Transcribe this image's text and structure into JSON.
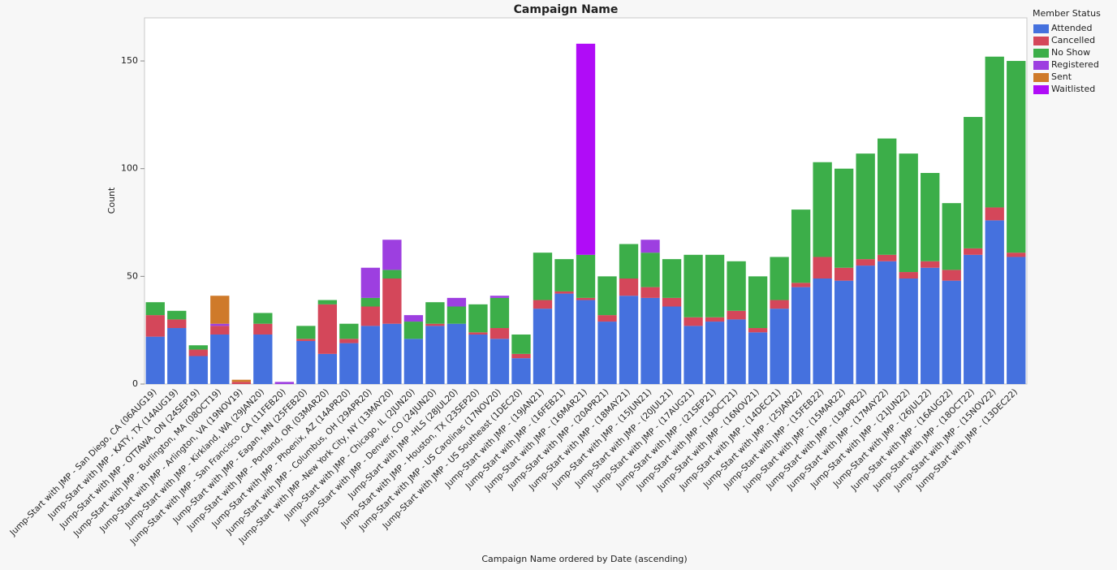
{
  "chart_data": {
    "type": "stacked_bar",
    "title": "Campaign Name",
    "x_label": "Campaign Name ordered by Date (ascending)",
    "y_label": "Count",
    "legend_title": "Member Status",
    "categories": [
      "Jump-Start with JMP - San Diego, CA (06AUG19)",
      "Jump-Start with JMP - KATY, TX (14AUG19)",
      "Jump-Start with JMP - OTTAWA, ON (24SEP19)",
      "Jump-Start with JMP - Burlington, MA (08OCT19)",
      "Jump-Start with JMP - Arlington, VA (19NOV19)",
      "Jump-Start with JMP - Kirkland, WA (29JAN20)",
      "Jump-Start with JMP - San Francisco, CA (11FEB20)",
      "Jump-Start with JMP - Eagan, MN (25FEB20)",
      "Jump-Start with JMP - Portland, OR (03MAR20)",
      "Jump-Start with JMP - Phoenix, AZ (14APR20)",
      "Jump-Start with JMP - Columbus, OH (29APR20)",
      "Jump-Start with JMP -New York City, NY (13MAY20)",
      "Jump-Start with JMP - Chicago, IL (2JUN20)",
      "Jump-Start with JMP - Denver, CO (24JUN20)",
      "Jump-Start with JMP -HLS (28JUL20)",
      "Jump-Start with JMP - Houston, TX (23SEP20)",
      "Jump-Start with JMP - US Carolinas (17NOV20)",
      "Jump-Start with JMP - US Southeast (1DEC20)",
      "Jump-Start with JMP - (19JAN21)",
      "Jump-Start with JMP - (16FEB21)",
      "Jump-Start with JMP - (16MAR21)",
      "Jump-Start with JMP - (20APR21)",
      "Jump-Start with JMP - (18MAY21)",
      "Jump-Start with JMP - (15JUN21)",
      "Jump-Start with JMP - (20JUL21)",
      "Jump-Start with JMP - (17AUG21)",
      "Jump-Start with JMP - (21SEP21)",
      "Jump-Start with JMP - (19OCT21)",
      "Jump-Start with JMP - (16NOV21)",
      "Jump-Start with JMP - (14DEC21)",
      "Jump-Start with JMP - (25JAN22)",
      "Jump-Start with JMP - (15FEB22)",
      "Jump-Start with JMP - (15MAR22)",
      "Jump-Start with JMP - (19APR22)",
      "Jump-Start with JMP - (17MAY22)",
      "Jump-Start with JMP - (21JUN22)",
      "Jump-Start with JMP - (26JUL22)",
      "Jump-Start with JMP - (16AUG22)",
      "Jump-Start with JMP - (18OCT22)",
      "Jump-Start with JMP - (15NOV22)",
      "Jump-Start with JMP - (13DEC22)"
    ],
    "series": [
      {
        "name": "Attended",
        "color": "#4571de",
        "values": [
          22,
          26,
          13,
          23,
          0,
          23,
          0,
          20,
          14,
          19,
          27,
          28,
          21,
          27,
          28,
          23,
          21,
          12,
          35,
          42,
          39,
          29,
          41,
          40,
          36,
          27,
          29,
          30,
          24,
          35,
          45,
          49,
          48,
          55,
          57,
          49,
          54,
          48,
          60,
          76,
          59
        ]
      },
      {
        "name": "Cancelled",
        "color": "#d4475a",
        "values": [
          10,
          4,
          3,
          4,
          1,
          5,
          0,
          1,
          23,
          2,
          9,
          21,
          0,
          1,
          0,
          1,
          5,
          2,
          4,
          1,
          1,
          3,
          8,
          5,
          4,
          4,
          2,
          4,
          2,
          4,
          2,
          10,
          6,
          3,
          3,
          3,
          3,
          5,
          3,
          6,
          2
        ]
      },
      {
        "name": "No Show",
        "color": "#3cae49",
        "values": [
          6,
          4,
          2,
          0,
          0,
          5,
          0,
          6,
          2,
          7,
          4,
          4,
          8,
          10,
          8,
          13,
          14,
          9,
          22,
          15,
          20,
          18,
          16,
          16,
          18,
          29,
          29,
          23,
          24,
          20,
          34,
          44,
          46,
          49,
          54,
          55,
          41,
          31,
          61,
          70,
          89
        ]
      },
      {
        "name": "Registered",
        "color": "#9d3fe0",
        "values": [
          0,
          0,
          0,
          1,
          0,
          0,
          1,
          0,
          0,
          0,
          14,
          14,
          3,
          0,
          4,
          0,
          1,
          0,
          0,
          0,
          0,
          0,
          0,
          6,
          0,
          0,
          0,
          0,
          0,
          0,
          0,
          0,
          0,
          0,
          0,
          0,
          0,
          0,
          0,
          0,
          0
        ]
      },
      {
        "name": "Sent",
        "color": "#cf7a2a",
        "values": [
          0,
          0,
          0,
          13,
          1,
          0,
          0,
          0,
          0,
          0,
          0,
          0,
          0,
          0,
          0,
          0,
          0,
          0,
          0,
          0,
          0,
          0,
          0,
          0,
          0,
          0,
          0,
          0,
          0,
          0,
          0,
          0,
          0,
          0,
          0,
          0,
          0,
          0,
          0,
          0,
          0
        ]
      },
      {
        "name": "Waitlisted",
        "color": "#b00cf7",
        "values": [
          0,
          0,
          0,
          0,
          0,
          0,
          0,
          0,
          0,
          0,
          0,
          0,
          0,
          0,
          0,
          0,
          0,
          0,
          0,
          0,
          98,
          0,
          0,
          0,
          0,
          0,
          0,
          0,
          0,
          0,
          0,
          0,
          0,
          0,
          0,
          0,
          0,
          0,
          0,
          0,
          0
        ]
      }
    ],
    "ylim": [
      0,
      170
    ],
    "yticks": [
      0,
      50,
      100,
      150
    ],
    "grid": false
  }
}
